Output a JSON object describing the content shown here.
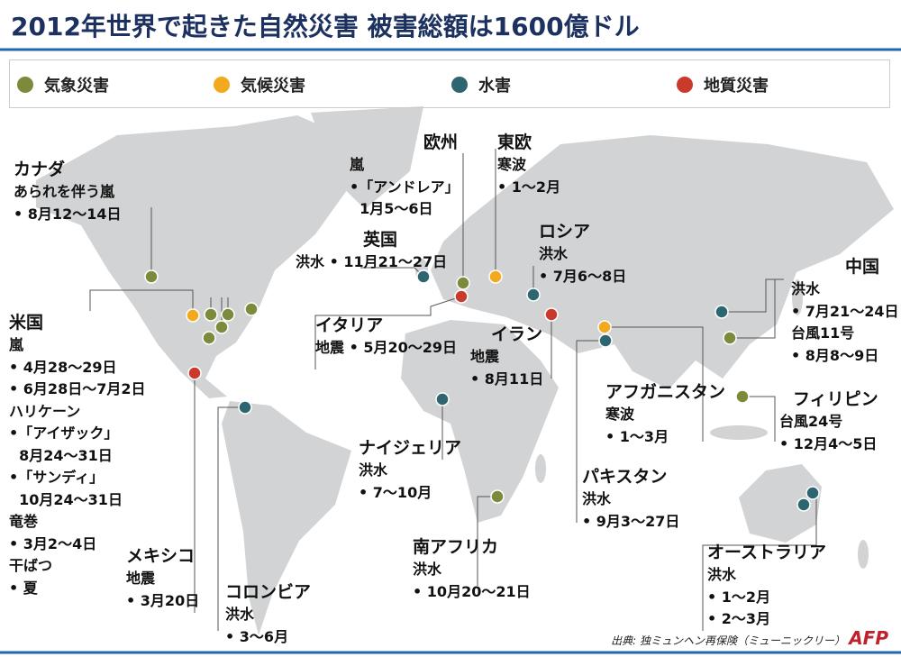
{
  "header": {
    "title": "2012年世界で起きた自然災害 被害総額は1600億ドル"
  },
  "legend": [
    {
      "label": "気象災害",
      "color": "#7b8b3b"
    },
    {
      "label": "気候災害",
      "color": "#f3a91e"
    },
    {
      "label": "水害",
      "color": "#2d6570"
    },
    {
      "label": "地質災害",
      "color": "#c93a2c"
    }
  ],
  "regions": [
    {
      "name": "カナダ",
      "lines": [
        "あられを伴う嵐",
        "• 8月12～14日"
      ]
    },
    {
      "name": "米国",
      "lines": [
        "嵐",
        "• 4月28～29日",
        "• 6月28日～7月2日",
        "ハリケーン",
        "•「アイザック」",
        "  8月24～31日",
        "•「サンディ」",
        "  10月24～31日",
        "竜巻",
        "• 3月2～4日",
        "干ばつ",
        "• 夏"
      ]
    },
    {
      "name": "メキシコ",
      "lines": [
        "地震",
        "• 3月20日"
      ]
    },
    {
      "name": "コロンビア",
      "lines": [
        "洪水",
        "• 3～6月"
      ]
    },
    {
      "name": "英国",
      "lines": [
        "洪水 • 11月21～27日"
      ]
    },
    {
      "name": "欧州",
      "lines": [
        "嵐",
        "•「アンドレア」",
        "  1月5～6日"
      ]
    },
    {
      "name": "東欧",
      "lines": [
        "寒波",
        "• 1～2月"
      ]
    },
    {
      "name": "ロシア",
      "lines": [
        "洪水",
        "• 7月6～8日"
      ]
    },
    {
      "name": "イタリア",
      "lines": [
        "地震 • 5月20～29日"
      ]
    },
    {
      "name": "イラン",
      "lines": [
        "地震",
        "• 8月11日"
      ]
    },
    {
      "name": "ナイジェリア",
      "lines": [
        "洪水",
        "• 7～10月"
      ]
    },
    {
      "name": "南アフリカ",
      "lines": [
        "洪水",
        "• 10月20～21日"
      ]
    },
    {
      "name": "アフガニスタン",
      "lines": [
        "寒波",
        "• 1～3月"
      ]
    },
    {
      "name": "パキスタン",
      "lines": [
        "洪水",
        "• 9月3～27日"
      ]
    },
    {
      "name": "中国",
      "lines": [
        "洪水",
        "• 7月21～24日",
        "台風11号",
        "• 8月8～9日"
      ]
    },
    {
      "name": "フィリピン",
      "lines": [
        "台風24号",
        "• 12月4～5日"
      ]
    },
    {
      "name": "オーストラリア",
      "lines": [
        "洪水",
        "• 1～2月",
        "• 2～3月"
      ]
    }
  ],
  "footer": {
    "source": "出典: 独ミュンヘン再保険（ミューニックリー）",
    "logo": "AFP"
  }
}
